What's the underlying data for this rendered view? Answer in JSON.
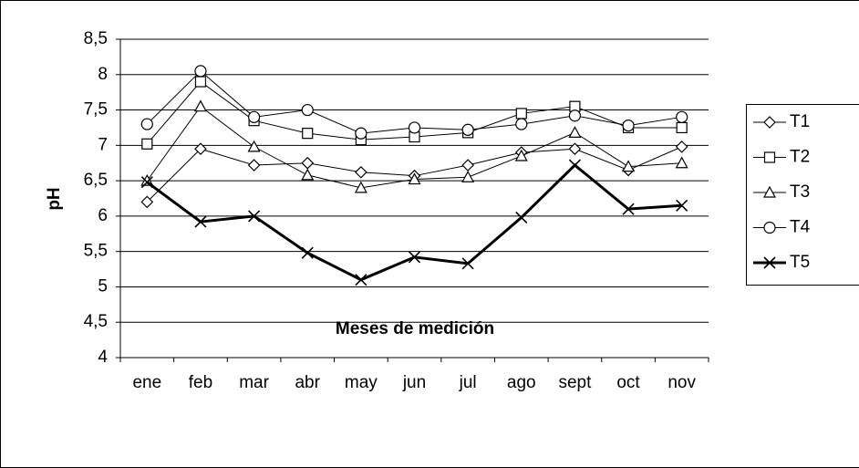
{
  "chart_data": {
    "type": "line",
    "y_label": "pH",
    "x_label": "Meses de medición",
    "categories": [
      "ene",
      "feb",
      "mar",
      "abr",
      "may",
      "jun",
      "jul",
      "ago",
      "sept",
      "oct",
      "nov"
    ],
    "series": [
      {
        "name": "T1",
        "color": "#000000",
        "marker": "diamond",
        "line_width": 1,
        "values": [
          6.2,
          6.95,
          6.72,
          6.75,
          6.62,
          6.57,
          6.72,
          6.9,
          6.95,
          6.65,
          6.98
        ]
      },
      {
        "name": "T2",
        "color": "#000000",
        "marker": "square",
        "line_width": 1,
        "values": [
          7.02,
          7.9,
          7.35,
          7.17,
          7.08,
          7.12,
          7.18,
          7.45,
          7.55,
          7.25,
          7.25
        ]
      },
      {
        "name": "T3",
        "color": "#000000",
        "marker": "triangle",
        "line_width": 1,
        "values": [
          6.5,
          7.55,
          6.98,
          6.58,
          6.4,
          6.52,
          6.55,
          6.85,
          7.18,
          6.7,
          6.75
        ]
      },
      {
        "name": "T4",
        "color": "#000000",
        "marker": "circle",
        "line_width": 1,
        "values": [
          7.3,
          8.05,
          7.4,
          7.5,
          7.17,
          7.25,
          7.22,
          7.3,
          7.42,
          7.28,
          7.4
        ]
      },
      {
        "name": "T5",
        "color": "#000000",
        "marker": "x",
        "line_width": 3,
        "values": [
          6.48,
          5.92,
          6.0,
          5.48,
          5.1,
          5.42,
          5.33,
          5.98,
          6.72,
          6.1,
          6.15
        ]
      }
    ],
    "ylim": [
      4,
      8.5
    ],
    "yticks": [
      4,
      {
        "value": 4.5,
        "label": "4,5"
      },
      5,
      {
        "value": 5.5,
        "label": "5,5"
      },
      6,
      {
        "value": 6.5,
        "label": "6,5"
      },
      7,
      {
        "value": 7.5,
        "label": "7,5"
      },
      8,
      {
        "value": 8.5,
        "label": "8,5"
      }
    ],
    "grid": true,
    "legend": "right"
  }
}
